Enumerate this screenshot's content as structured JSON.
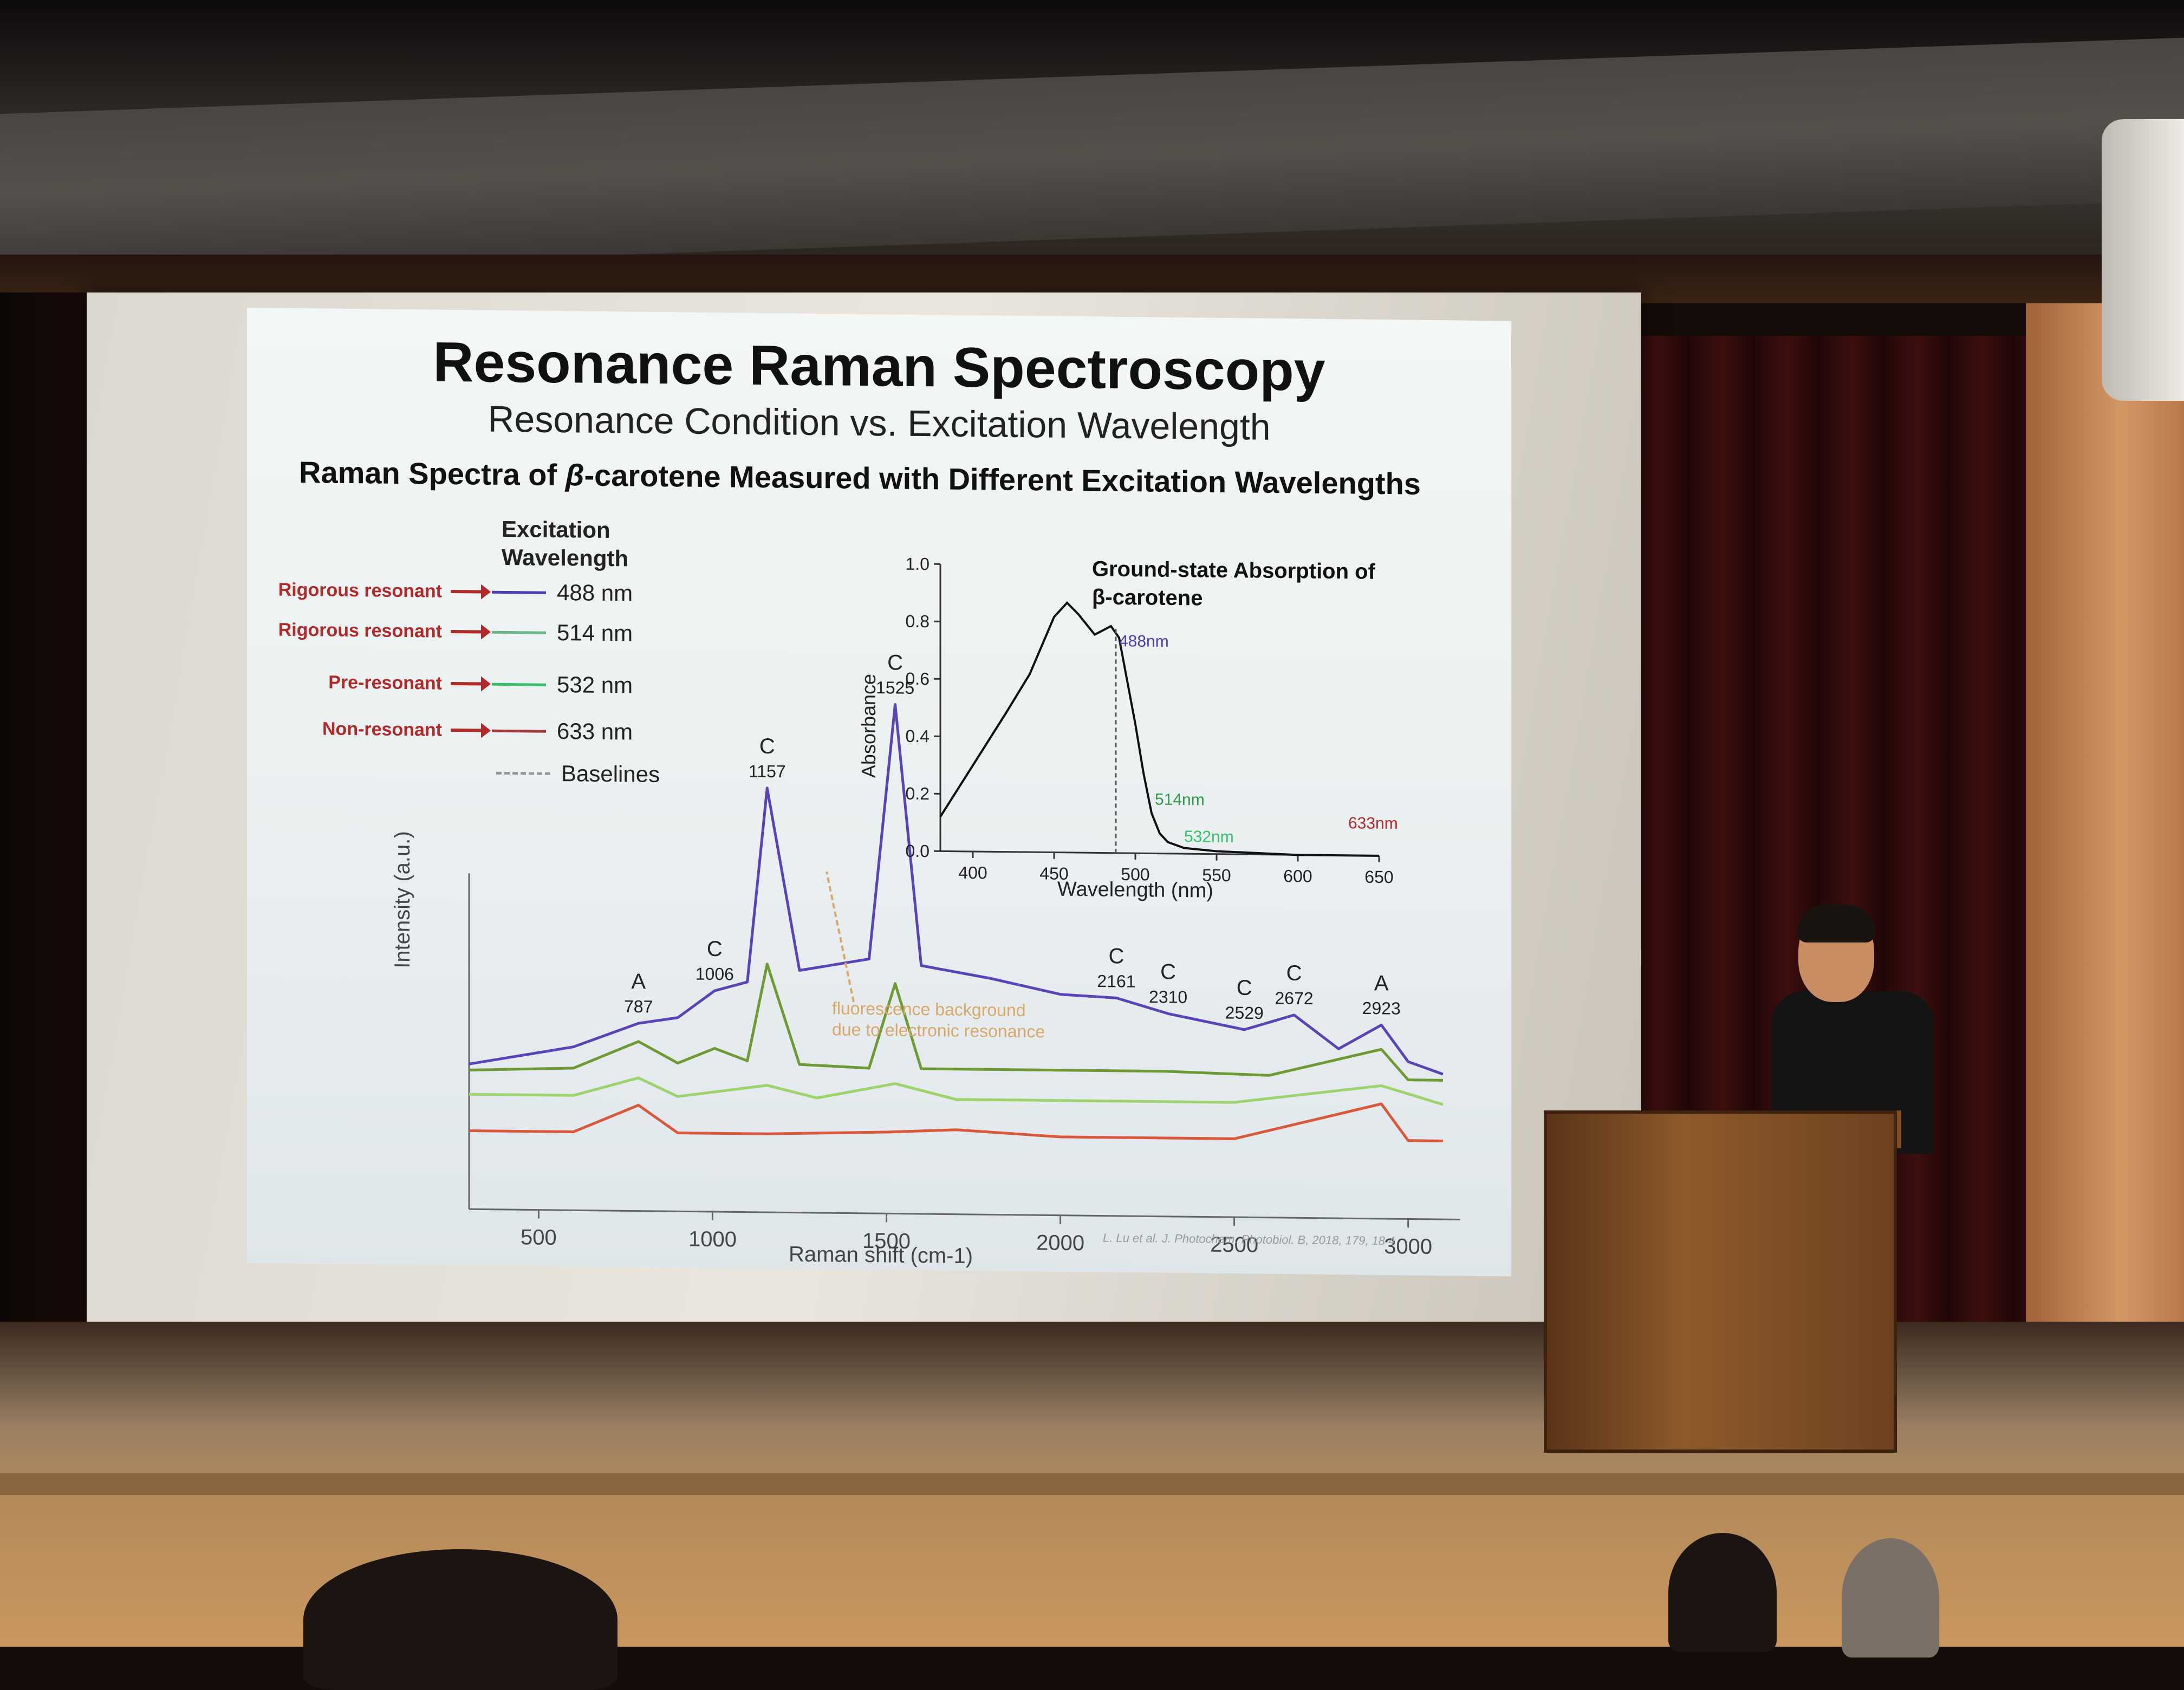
{
  "slide": {
    "title": "Resonance Raman Spectroscopy",
    "subtitle": "Resonance Condition vs. Excitation Wavelength",
    "heading_pre": "Raman Spectra of ",
    "heading_beta": "β",
    "heading_post": "-carotene Measured with Different Excitation Wavelengths",
    "legend_title_1": "Excitation",
    "legend_title_2": "Wavelength",
    "legend": [
      {
        "tag": "Rigorous resonant",
        "label": "488 nm",
        "color": "#4b3bb5"
      },
      {
        "tag": "Rigorous resonant",
        "label": "514 nm",
        "color": "#6cb58a"
      },
      {
        "tag": "Pre-resonant",
        "label": "532 nm",
        "color": "#38c16a"
      },
      {
        "tag": "Non-resonant",
        "label": "633 nm",
        "color": "#a23a3a"
      }
    ],
    "baselines_label": "Baselines",
    "citation": "L. Lu et al. J. Photochem. Photobiol. B, 2018, 179, 18   4"
  },
  "chart_data": [
    {
      "type": "line",
      "xlabel": "Raman shift (cm-1)",
      "ylabel": "Intensity (a.u.)",
      "xlim": [
        300,
        3150
      ],
      "xticks": [
        500,
        1000,
        1500,
        2000,
        2500,
        3000
      ],
      "peaks": [
        {
          "x": 787,
          "band": "A",
          "label": "787"
        },
        {
          "x": 1006,
          "band": "C",
          "label": "1006"
        },
        {
          "x": 1157,
          "band": "C",
          "label": "1157"
        },
        {
          "x": 1525,
          "band": "C",
          "label": "1525"
        },
        {
          "x": 2161,
          "band": "C",
          "label": "2161"
        },
        {
          "x": 2310,
          "band": "C",
          "label": "2310"
        },
        {
          "x": 2529,
          "band": "C",
          "label": "2529"
        },
        {
          "x": 2672,
          "band": "C",
          "label": "2672"
        },
        {
          "x": 2923,
          "band": "A",
          "label": "2923"
        }
      ],
      "annotation_1": "fluorescence background",
      "annotation_2": "due to electronic resonance",
      "series": [
        {
          "name": "488 nm",
          "color": "#5a43b8",
          "x": [
            300,
            600,
            787,
            900,
            1006,
            1100,
            1157,
            1250,
            1450,
            1525,
            1600,
            1800,
            2000,
            2161,
            2310,
            2529,
            2672,
            2800,
            2923,
            3000,
            3100
          ],
          "y": [
            0.3,
            0.36,
            0.44,
            0.46,
            0.55,
            0.58,
            1.22,
            0.62,
            0.66,
            1.5,
            0.64,
            0.6,
            0.55,
            0.54,
            0.49,
            0.44,
            0.49,
            0.38,
            0.46,
            0.34,
            0.3
          ]
        },
        {
          "name": "514 nm",
          "color": "#6e9a34",
          "x": [
            300,
            600,
            787,
            900,
            1006,
            1100,
            1157,
            1250,
            1450,
            1525,
            1600,
            1800,
            2000,
            2300,
            2600,
            2923,
            3000,
            3100
          ],
          "y": [
            0.28,
            0.29,
            0.38,
            0.31,
            0.36,
            0.32,
            0.64,
            0.31,
            0.3,
            0.58,
            0.3,
            0.3,
            0.3,
            0.3,
            0.29,
            0.38,
            0.28,
            0.28
          ]
        },
        {
          "name": "532 nm",
          "color": "#9dd36a",
          "x": [
            300,
            600,
            787,
            900,
            1157,
            1300,
            1525,
            1700,
            2000,
            2500,
            2923,
            3100
          ],
          "y": [
            0.2,
            0.2,
            0.26,
            0.2,
            0.24,
            0.2,
            0.25,
            0.2,
            0.2,
            0.2,
            0.26,
            0.2
          ]
        },
        {
          "name": "633 nm",
          "color": "#d9583a",
          "x": [
            300,
            600,
            787,
            900,
            1157,
            1500,
            1700,
            2000,
            2500,
            2923,
            3000,
            3100
          ],
          "y": [
            0.08,
            0.08,
            0.17,
            0.08,
            0.08,
            0.09,
            0.1,
            0.08,
            0.08,
            0.2,
            0.08,
            0.08
          ]
        }
      ]
    },
    {
      "type": "line",
      "title_1": "Ground-state Absorption of",
      "title_2": "β-carotene",
      "xlabel": "Wavelength (nm)",
      "ylabel": "Absorbance",
      "xlim": [
        380,
        650
      ],
      "ylim": [
        0,
        1.0
      ],
      "xticks": [
        400,
        450,
        500,
        550,
        600,
        650
      ],
      "yticks": [
        0.0,
        0.2,
        0.4,
        0.6,
        0.8,
        1.0
      ],
      "ytick_labels": [
        "0.0",
        "0.2",
        "0.4",
        "0.6",
        "0.8",
        "1.0"
      ],
      "markers": [
        {
          "x": 488,
          "label": "488nm",
          "color": "#4b3bb5"
        },
        {
          "x": 514,
          "label": "514nm",
          "color": "#2f9a4a"
        },
        {
          "x": 532,
          "label": "532nm",
          "color": "#38c16a"
        },
        {
          "x": 633,
          "label": "633nm",
          "color": "#b02a2a"
        }
      ],
      "series": [
        {
          "color": "#111111",
          "x": [
            380,
            400,
            420,
            435,
            450,
            458,
            465,
            475,
            485,
            490,
            495,
            500,
            505,
            510,
            515,
            520,
            530,
            550,
            600,
            650
          ],
          "y": [
            0.12,
            0.3,
            0.48,
            0.62,
            0.82,
            0.87,
            0.83,
            0.76,
            0.79,
            0.75,
            0.6,
            0.45,
            0.28,
            0.14,
            0.07,
            0.04,
            0.02,
            0.01,
            0.0,
            0.0
          ]
        }
      ]
    }
  ]
}
